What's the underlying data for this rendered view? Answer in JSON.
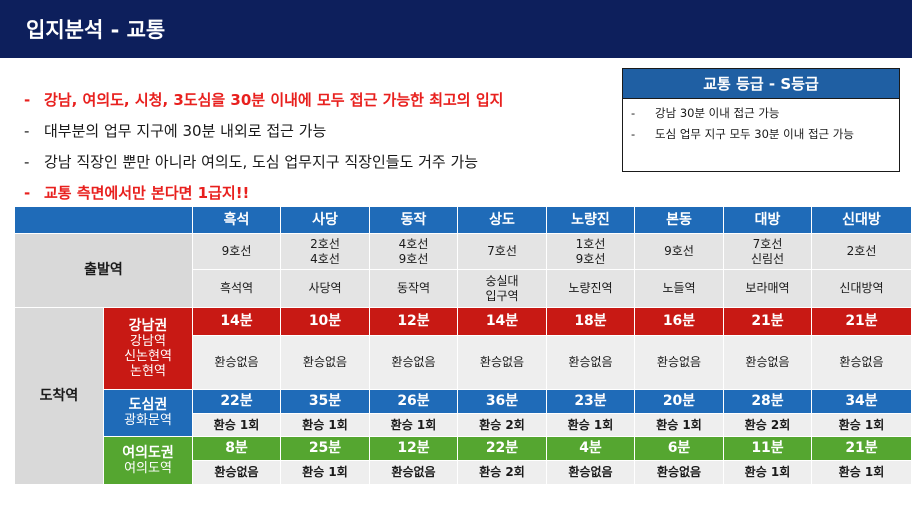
{
  "header": {
    "title": "입지분석 - 교통"
  },
  "bullets": [
    {
      "text": "강남, 여의도, 시청, 3도심을 30분 이내에 모두 접근 가능한 최고의 입지",
      "color": "red"
    },
    {
      "text": "대부분의 업무 지구에 30분 내외로 접근 가능",
      "color": "black"
    },
    {
      "text": "강남 직장인 뿐만 아니라 여의도, 도심 업무지구 직장인들도 거주 가능",
      "color": "black"
    },
    {
      "text": "교통 측면에서만 본다면 1급지!!",
      "color": "red"
    }
  ],
  "grade_box": {
    "title": "교통 등급 - S등급",
    "items": [
      "강남 30분 이내 접근 가능",
      "도심 업무 지구 모두 30분 이내 접근 가능"
    ]
  },
  "table": {
    "columns": [
      "흑석",
      "사당",
      "동작",
      "상도",
      "노량진",
      "본동",
      "대방",
      "신대방"
    ],
    "departure_label": "출발역",
    "arrival_label": "도착역",
    "lines": [
      [
        "9호선"
      ],
      [
        "2호선",
        "4호선"
      ],
      [
        "4호선",
        "9호선"
      ],
      [
        "7호선"
      ],
      [
        "1호선",
        "9호선"
      ],
      [
        "9호선"
      ],
      [
        "7호선",
        "신림선"
      ],
      [
        "2호선"
      ]
    ],
    "stations": [
      [
        "흑석역"
      ],
      [
        "사당역"
      ],
      [
        "동작역"
      ],
      [
        "숭실대",
        "입구역"
      ],
      [
        "노량진역"
      ],
      [
        "노들역"
      ],
      [
        "보라매역"
      ],
      [
        "신대방역"
      ]
    ],
    "zones": [
      {
        "name": "강남권",
        "stations": [
          "강남역",
          "신논현역",
          "논현역"
        ],
        "color": "#c81914",
        "times": [
          "14분",
          "10분",
          "12분",
          "14분",
          "18분",
          "16분",
          "21분",
          "21분"
        ],
        "transfers": [
          "환승없음",
          "환승없음",
          "환승없음",
          "환승없음",
          "환승없음",
          "환승없음",
          "환승없음",
          "환승없음"
        ]
      },
      {
        "name": "도심권",
        "stations": [
          "광화문역"
        ],
        "color": "#1f6bb8",
        "times": [
          "22분",
          "35분",
          "26분",
          "36분",
          "23분",
          "20분",
          "28분",
          "34분"
        ],
        "transfers": [
          "환승 1회",
          "환승 1회",
          "환승 1회",
          "환승 2회",
          "환승 1회",
          "환승 1회",
          "환승 2회",
          "환승 1회"
        ]
      },
      {
        "name": "여의도권",
        "stations": [
          "여의도역"
        ],
        "color": "#55a630",
        "times": [
          "8분",
          "25분",
          "12분",
          "22분",
          "4분",
          "6분",
          "11분",
          "21분"
        ],
        "transfers": [
          "환승없음",
          "환승 1회",
          "환승없음",
          "환승 2회",
          "환승없음",
          "환승없음",
          "환승 1회",
          "환승 1회"
        ]
      }
    ]
  }
}
